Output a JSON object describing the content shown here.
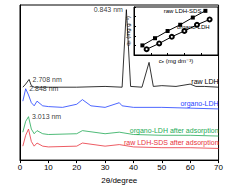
{
  "chart_data": [
    {
      "type": "line",
      "x_label": "2θ/degree",
      "xlim": [
        0,
        70
      ],
      "xticks": [
        0,
        10,
        20,
        30,
        40,
        50,
        60,
        70
      ],
      "ylim": [
        0,
        100
      ],
      "tick_labels": "x",
      "grid": false,
      "series": [
        {
          "name": "raw LDH",
          "color": "#000000",
          "x": [
            1,
            2,
            3.2,
            4,
            5,
            10,
            20,
            30,
            36,
            37.5,
            39,
            43,
            45.5,
            47,
            50,
            55,
            60,
            62,
            65,
            70
          ],
          "values": [
            47,
            49,
            52,
            48,
            47,
            47,
            47,
            47.5,
            47,
            97,
            47.5,
            47,
            63,
            47.5,
            48,
            47.5,
            49,
            47.5,
            47.5,
            47
          ]
        },
        {
          "name": "organo-LDH",
          "color": "#1f3fff",
          "x": [
            1,
            2,
            3,
            4,
            5,
            6,
            8,
            10,
            15,
            20,
            22,
            25,
            30,
            35,
            36,
            40,
            50,
            60,
            70
          ],
          "values": [
            38,
            46,
            42,
            37,
            35,
            38,
            35,
            34.5,
            34,
            36,
            39,
            35,
            34,
            37,
            35,
            34,
            34,
            33.5,
            33
          ]
        },
        {
          "name": "organo-LDH after adsorption",
          "color": "#22aa55",
          "x": [
            1,
            2,
            3,
            4,
            5,
            6,
            8,
            10,
            20,
            22,
            30,
            35,
            40,
            50,
            60,
            70
          ],
          "values": [
            18,
            25,
            28,
            20,
            17,
            19,
            17,
            16.5,
            17,
            19,
            17,
            18,
            16.5,
            16,
            16,
            15.5
          ]
        },
        {
          "name": "raw LDH-SDS after adsorption",
          "color": "#e8323c",
          "x": [
            1,
            2,
            3,
            4,
            5,
            6,
            8,
            10,
            20,
            22,
            30,
            35,
            40,
            50,
            60,
            70
          ],
          "values": [
            9,
            16,
            20,
            12,
            9,
            11,
            9,
            8.5,
            9,
            11,
            9,
            10,
            8.5,
            8,
            8,
            7.5
          ]
        }
      ],
      "annotations": [
        {
          "text": "0.843 nm",
          "x": 37.5,
          "y": 97
        },
        {
          "text": "2.708 nm",
          "x": 3.2,
          "y": 52
        },
        {
          "text": "2.848 nm",
          "x": 2,
          "y": 46
        },
        {
          "text": "3.013 nm",
          "x": 3,
          "y": 28
        }
      ]
    },
    {
      "type": "line",
      "x_label": "cₑ (mg dm⁻³)",
      "y_label": "qₑ (mg g⁻¹)",
      "xlim": [
        0,
        10
      ],
      "xticks": [
        0,
        2,
        4,
        6,
        8,
        10
      ],
      "ylim": [
        0,
        10
      ],
      "yticks": [
        0,
        2,
        4,
        6,
        8,
        10
      ],
      "tick_labels": false,
      "grid": false,
      "series": [
        {
          "name": "raw LDH-SDS",
          "color": "#000000",
          "marker": "square",
          "x": [
            1,
            2.5,
            4,
            5.5,
            7,
            8.5
          ],
          "values": [
            2,
            3.5,
            5,
            6.3,
            7.8,
            9.2
          ]
        },
        {
          "name": "organo-LDH",
          "color": "#000000",
          "marker": "circle",
          "x": [
            1.5,
            3,
            4.5,
            6,
            7.5,
            9
          ],
          "values": [
            1.2,
            2.4,
            3.8,
            5,
            6.3,
            7.4
          ]
        }
      ]
    }
  ]
}
